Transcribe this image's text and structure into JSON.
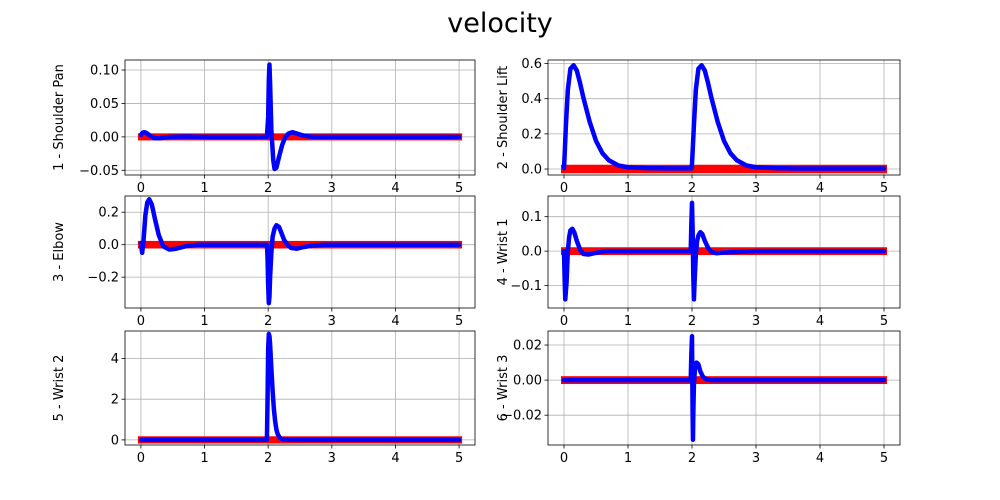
{
  "figure_title": "velocity",
  "colors": {
    "reference": "#ff0000",
    "measured": "#0000ff",
    "grid": "#b0b0b0"
  },
  "chart_data": [
    {
      "type": "line",
      "ylabel": "1 - Shoulder Pan",
      "xlim": [
        -0.25,
        5.25
      ],
      "ylim": [
        -0.057,
        0.115
      ],
      "xticks": [
        0,
        1,
        2,
        3,
        4,
        5
      ],
      "yticks": [
        -0.05,
        0.0,
        0.05,
        0.1
      ],
      "ytick_labels": [
        "−0.05",
        "0.00",
        "0.05",
        "0.10"
      ],
      "grid": true,
      "reference_band": 0.0023,
      "series": [
        {
          "role": "reference",
          "x": [
            0,
            5
          ],
          "y": [
            0,
            0
          ]
        },
        {
          "role": "measured",
          "x": [
            0,
            0.03,
            0.06,
            0.1,
            0.15,
            0.22,
            0.3,
            0.45,
            0.7,
            1.0,
            1.5,
            1.98,
            2.0,
            2.01,
            2.02,
            2.03,
            2.05,
            2.08,
            2.1,
            2.13,
            2.17,
            2.22,
            2.27,
            2.32,
            2.38,
            2.45,
            2.55,
            2.7,
            2.9,
            3.2,
            3.6,
            4.0,
            4.5,
            5.0
          ],
          "y": [
            0.003,
            0.0065,
            0.007,
            0.005,
            0.0015,
            -0.002,
            -0.002,
            0.0,
            0.0005,
            0.0,
            0.0,
            0.0,
            0.03,
            0.085,
            0.108,
            0.08,
            0.01,
            -0.035,
            -0.048,
            -0.046,
            -0.03,
            -0.012,
            0.0,
            0.005,
            0.007,
            0.005,
            0.002,
            0.0,
            0.0,
            0.0,
            0.0,
            0.0,
            0.0,
            0.0
          ]
        }
      ]
    },
    {
      "type": "line",
      "ylabel": "2 - Shoulder Lift",
      "xlim": [
        -0.25,
        5.25
      ],
      "ylim": [
        -0.034,
        0.62
      ],
      "xticks": [
        0,
        1,
        2,
        3,
        4,
        5
      ],
      "yticks": [
        0.0,
        0.2,
        0.4,
        0.6
      ],
      "ytick_labels": [
        "0.0",
        "0.2",
        "0.4",
        "0.6"
      ],
      "grid": true,
      "reference_band": 0.013,
      "series": [
        {
          "role": "reference",
          "x": [
            0,
            5
          ],
          "y": [
            0,
            0
          ]
        },
        {
          "role": "measured",
          "x": [
            0,
            0.01,
            0.03,
            0.06,
            0.1,
            0.15,
            0.2,
            0.25,
            0.3,
            0.4,
            0.5,
            0.6,
            0.7,
            0.85,
            1.0,
            1.3,
            1.6,
            1.99,
            2.0,
            2.01,
            2.03,
            2.06,
            2.1,
            2.15,
            2.2,
            2.25,
            2.3,
            2.4,
            2.5,
            2.6,
            2.7,
            2.85,
            3.0,
            3.3,
            3.6,
            4.0,
            4.5,
            5.0
          ],
          "y": [
            0.005,
            0.08,
            0.25,
            0.45,
            0.57,
            0.59,
            0.56,
            0.49,
            0.41,
            0.27,
            0.16,
            0.09,
            0.05,
            0.02,
            0.01,
            0.005,
            0.004,
            0.004,
            0.03,
            0.1,
            0.25,
            0.45,
            0.57,
            0.59,
            0.56,
            0.49,
            0.41,
            0.27,
            0.16,
            0.09,
            0.05,
            0.02,
            0.01,
            0.005,
            0.003,
            0.003,
            0.003,
            0.003
          ]
        }
      ]
    },
    {
      "type": "line",
      "ylabel": "3 - Elbow",
      "xlim": [
        -0.25,
        5.25
      ],
      "ylim": [
        -0.39,
        0.3
      ],
      "xticks": [
        0,
        1,
        2,
        3,
        4,
        5
      ],
      "yticks": [
        -0.2,
        0.0,
        0.2
      ],
      "ytick_labels": [
        "−0.2",
        "0.0",
        "0.2"
      ],
      "grid": true,
      "reference_band": 0.011,
      "series": [
        {
          "role": "reference",
          "x": [
            0,
            5
          ],
          "y": [
            0,
            0
          ]
        },
        {
          "role": "measured",
          "x": [
            0,
            0.02,
            0.04,
            0.07,
            0.1,
            0.13,
            0.17,
            0.22,
            0.28,
            0.35,
            0.45,
            0.55,
            0.7,
            0.9,
            1.2,
            1.6,
            1.98,
            1.99,
            2.0,
            2.01,
            2.02,
            2.03,
            2.05,
            2.07,
            2.1,
            2.13,
            2.17,
            2.21,
            2.25,
            2.3,
            2.36,
            2.45,
            2.55,
            2.7,
            2.9,
            3.2,
            3.6,
            4.0,
            4.5,
            5.0
          ],
          "y": [
            0.01,
            -0.05,
            0.02,
            0.18,
            0.26,
            0.28,
            0.25,
            0.16,
            0.06,
            -0.01,
            -0.03,
            -0.025,
            -0.01,
            0.0,
            0.0,
            0.0,
            0.0,
            -0.08,
            -0.25,
            -0.36,
            -0.32,
            -0.2,
            -0.05,
            0.05,
            0.1,
            0.12,
            0.11,
            0.07,
            0.03,
            0.0,
            -0.02,
            -0.025,
            -0.015,
            -0.005,
            0.0,
            0.0,
            0.0,
            0.0,
            0.0,
            0.0
          ]
        }
      ]
    },
    {
      "type": "line",
      "ylabel": "4 - Wrist 1",
      "xlim": [
        -0.25,
        5.25
      ],
      "ylim": [
        -0.165,
        0.16
      ],
      "xticks": [
        0,
        1,
        2,
        3,
        4,
        5
      ],
      "yticks": [
        -0.1,
        0.0,
        0.1
      ],
      "ytick_labels": [
        "−0.1",
        "0.0",
        "0.1"
      ],
      "grid": true,
      "reference_band": 0.0055,
      "series": [
        {
          "role": "reference",
          "x": [
            0,
            5
          ],
          "y": [
            0,
            0
          ]
        },
        {
          "role": "measured",
          "x": [
            0,
            0.01,
            0.02,
            0.04,
            0.06,
            0.08,
            0.1,
            0.13,
            0.16,
            0.2,
            0.25,
            0.3,
            0.38,
            0.5,
            0.65,
            0.8,
            1.0,
            1.4,
            1.98,
            1.99,
            2.0,
            2.01,
            2.02,
            2.03,
            2.04,
            2.06,
            2.08,
            2.1,
            2.13,
            2.16,
            2.2,
            2.25,
            2.3,
            2.38,
            2.5,
            2.7,
            3.0,
            3.5,
            4.0,
            5.0
          ],
          "y": [
            0.0,
            -0.08,
            -0.14,
            -0.09,
            0.0,
            0.04,
            0.06,
            0.065,
            0.055,
            0.03,
            0.005,
            -0.008,
            -0.01,
            -0.005,
            0.0,
            0.0,
            0.0,
            0.0,
            0.0,
            0.08,
            0.14,
            0.06,
            -0.07,
            -0.14,
            -0.09,
            -0.01,
            0.03,
            0.045,
            0.055,
            0.05,
            0.03,
            0.01,
            -0.002,
            -0.006,
            -0.004,
            -0.002,
            0.0,
            0.0,
            0.0,
            0.0
          ]
        }
      ]
    },
    {
      "type": "line",
      "ylabel": "5 - Wrist 2",
      "xlim": [
        -0.25,
        5.25
      ],
      "ylim": [
        -0.25,
        5.35
      ],
      "xticks": [
        0,
        1,
        2,
        3,
        4,
        5
      ],
      "yticks": [
        0,
        2,
        4
      ],
      "ytick_labels": [
        "0",
        "2",
        "4"
      ],
      "grid": true,
      "reference_band": 0.08,
      "series": [
        {
          "role": "reference",
          "x": [
            0,
            5
          ],
          "y": [
            0,
            0
          ]
        },
        {
          "role": "measured",
          "x": [
            0,
            0.5,
            1.0,
            1.5,
            1.98,
            1.99,
            2.0,
            2.01,
            2.02,
            2.03,
            2.05,
            2.07,
            2.09,
            2.11,
            2.13,
            2.15,
            2.18,
            2.21,
            2.25,
            2.3,
            2.4,
            2.6,
            3.0,
            4.0,
            5.0
          ],
          "y": [
            0,
            0,
            0,
            0,
            0,
            2.0,
            4.5,
            5.2,
            5.1,
            4.7,
            3.5,
            2.4,
            1.5,
            0.9,
            0.5,
            0.28,
            0.12,
            0.05,
            0.02,
            0.01,
            0.0,
            0.0,
            0.0,
            0.0,
            0.0
          ]
        }
      ]
    },
    {
      "type": "line",
      "ylabel": "6 - Wrist 3",
      "xlim": [
        -0.25,
        5.25
      ],
      "ylim": [
        -0.037,
        0.028
      ],
      "xticks": [
        0,
        1,
        2,
        3,
        4,
        5
      ],
      "yticks": [
        -0.02,
        0.0,
        0.02
      ],
      "ytick_labels": [
        "−0.02",
        "0.00",
        "0.02"
      ],
      "grid": true,
      "reference_band": 0.0011,
      "series": [
        {
          "role": "reference",
          "x": [
            0,
            5
          ],
          "y": [
            0,
            0
          ]
        },
        {
          "role": "measured",
          "x": [
            0,
            0.5,
            1.0,
            1.5,
            1.98,
            1.99,
            2.0,
            2.005,
            2.01,
            2.015,
            2.02,
            2.03,
            2.05,
            2.07,
            2.1,
            2.13,
            2.17,
            2.22,
            2.3,
            2.5,
            3.0,
            4.0,
            5.0
          ],
          "y": [
            0.0,
            0.0,
            0.0,
            0.0,
            0.0,
            0.015,
            0.025,
            0.0,
            -0.02,
            -0.034,
            -0.02,
            -0.002,
            0.008,
            0.01,
            0.009,
            0.005,
            0.002,
            0.0005,
            0.0,
            0.0,
            0.0,
            0.0,
            0.0
          ]
        }
      ]
    }
  ]
}
